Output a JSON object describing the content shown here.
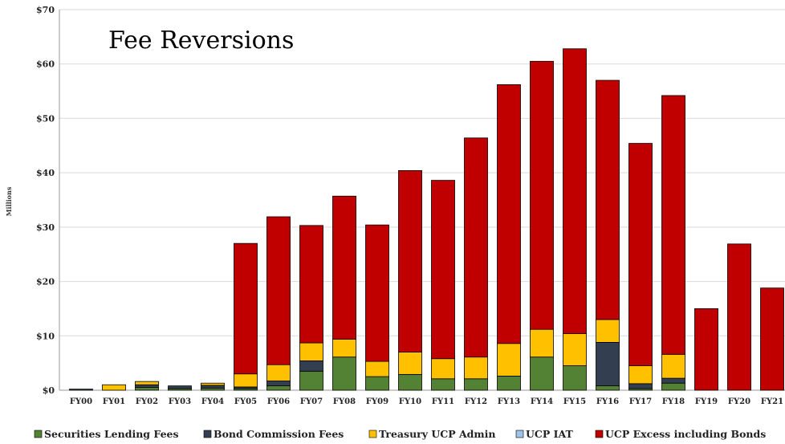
{
  "chart_data": {
    "type": "bar",
    "stacked": true,
    "title": "Fee Reversions",
    "ylabel": "Millions",
    "xlabel": "",
    "ylim": [
      0,
      70
    ],
    "y_ticks": [
      "$0",
      "$10",
      "$20",
      "$30",
      "$40",
      "$50",
      "$60",
      "$70"
    ],
    "y_tick_values": [
      0,
      10,
      20,
      30,
      40,
      50,
      60,
      70
    ],
    "grid": true,
    "legend_position": "bottom",
    "categories": [
      "FY00",
      "FY01",
      "FY02",
      "FY03",
      "FY04",
      "FY05",
      "FY06",
      "FY07",
      "FY08",
      "FY09",
      "FY10",
      "FY11",
      "FY12",
      "FY13",
      "FY14",
      "FY15",
      "FY16",
      "FY17",
      "FY18",
      "FY19",
      "FY20",
      "FY21"
    ],
    "series": [
      {
        "name": "Securities Lending Fees",
        "color": "#548235",
        "values": [
          0,
          0,
          0.5,
          0.3,
          0.4,
          0.3,
          0.8,
          3.5,
          6.1,
          2.5,
          2.9,
          2.1,
          2.1,
          2.6,
          6.1,
          4.5,
          0.8,
          0.3,
          1.3,
          0,
          0,
          0
        ]
      },
      {
        "name": "Bond Commission Fees",
        "color": "#333f50",
        "values": [
          0.2,
          0,
          0.5,
          0.5,
          0.5,
          0.3,
          0.9,
          1.9,
          0,
          0,
          0,
          0,
          0,
          0,
          0,
          0,
          8.0,
          0.9,
          0.9,
          0,
          0,
          0
        ]
      },
      {
        "name": "Treasury UCP Admin",
        "color": "#ffc000",
        "values": [
          0,
          1.0,
          0.6,
          0,
          0.4,
          2.4,
          3.0,
          3.3,
          3.3,
          2.8,
          4.1,
          3.7,
          4.0,
          6.0,
          5.1,
          5.9,
          4.2,
          3.3,
          4.4,
          0,
          0,
          0
        ]
      },
      {
        "name": "UCP IAT",
        "color": "#9dc3e6",
        "values": [
          0,
          0,
          0,
          0,
          0,
          0,
          0,
          0,
          0,
          0,
          0,
          0,
          0,
          0,
          0,
          0,
          0,
          0,
          0,
          0,
          0,
          0
        ]
      },
      {
        "name": "UCP Excess including Bonds",
        "color": "#c00000",
        "values": [
          0,
          0,
          0,
          0,
          0,
          24.0,
          27.2,
          21.6,
          26.3,
          25.1,
          33.4,
          32.8,
          40.3,
          47.6,
          49.3,
          52.4,
          44.0,
          40.9,
          47.6,
          15.0,
          26.9,
          18.8
        ]
      }
    ]
  }
}
